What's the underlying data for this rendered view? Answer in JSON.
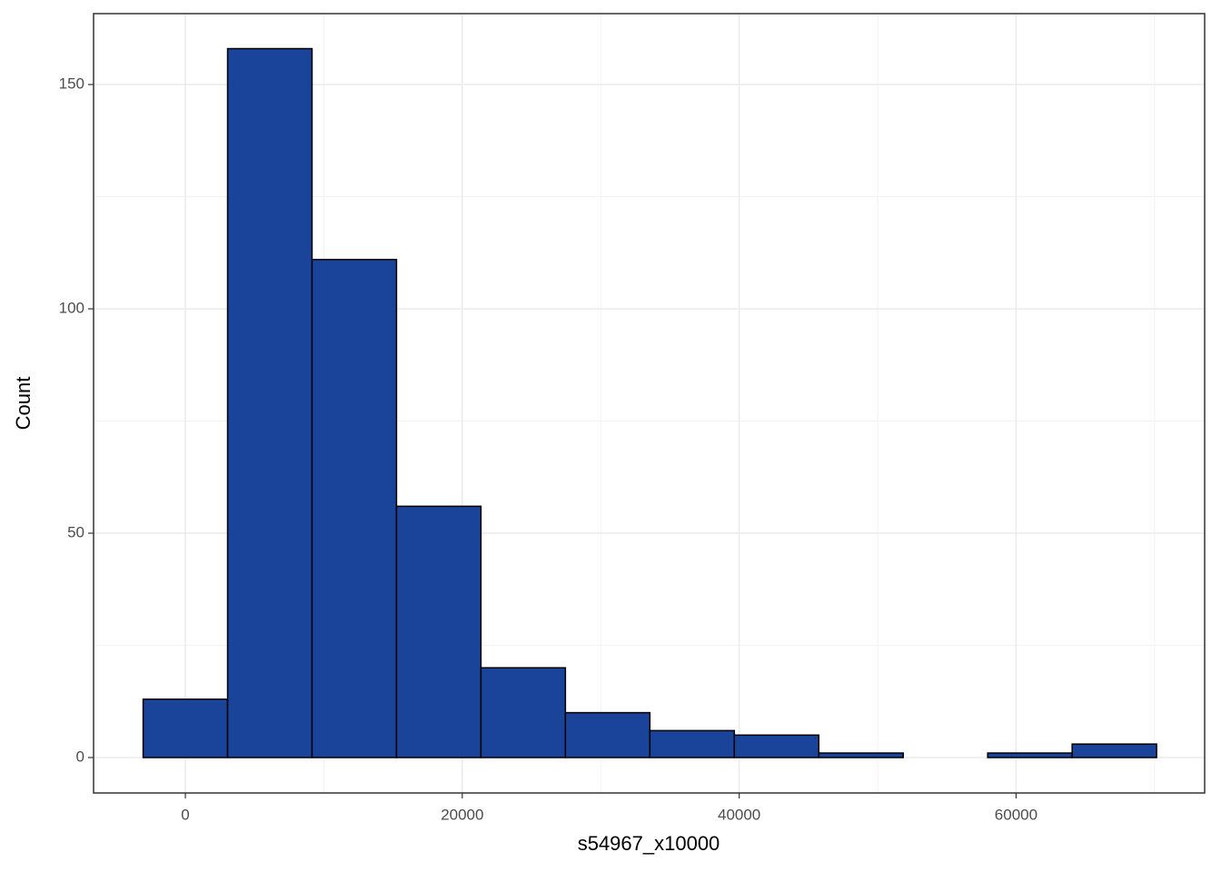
{
  "chart_data": {
    "type": "histogram",
    "x_label": "s54967_x10000",
    "y_label": "Count",
    "bins": [
      -3050,
      3050,
      9150,
      15250,
      21350,
      27450,
      33550,
      39650,
      45750,
      51850,
      57950,
      64050,
      70150
    ],
    "values": [
      13,
      158,
      111,
      56,
      20,
      10,
      6,
      5,
      1,
      0,
      1,
      3
    ],
    "color": "#1a4499",
    "edgecolor": "#000000",
    "xlim": [
      -6630,
      73620
    ],
    "ylim": [
      -7.9,
      165.8
    ],
    "xticks": [
      0,
      20000,
      40000,
      60000
    ],
    "yticks": [
      0,
      50,
      100,
      150
    ],
    "minor_xticks": [
      10000,
      30000,
      50000,
      70000
    ],
    "minor_yticks": [
      25,
      75,
      125
    ],
    "grid": true
  }
}
